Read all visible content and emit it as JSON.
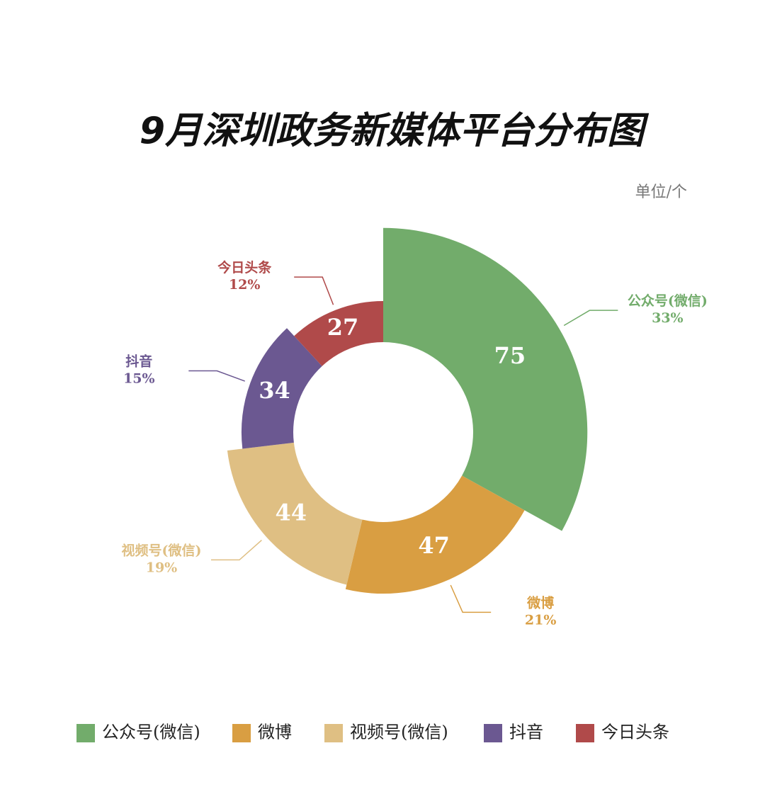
{
  "chart_data": {
    "type": "rose-donut",
    "title": "9月深圳政务新媒体平台分布图",
    "unit": "单位/个",
    "categories": [
      "公众号(微信)",
      "微博",
      "视频号(微信)",
      "抖音",
      "今日头条"
    ],
    "values": [
      75,
      47,
      44,
      34,
      27
    ],
    "percent_labels": [
      "33%",
      "21%",
      "19%",
      "15%",
      "12%"
    ],
    "colors": [
      "#72ac6b",
      "#d99e42",
      "#dfbf83",
      "#6b5891",
      "#b04a4a"
    ],
    "legend": "bottom"
  }
}
